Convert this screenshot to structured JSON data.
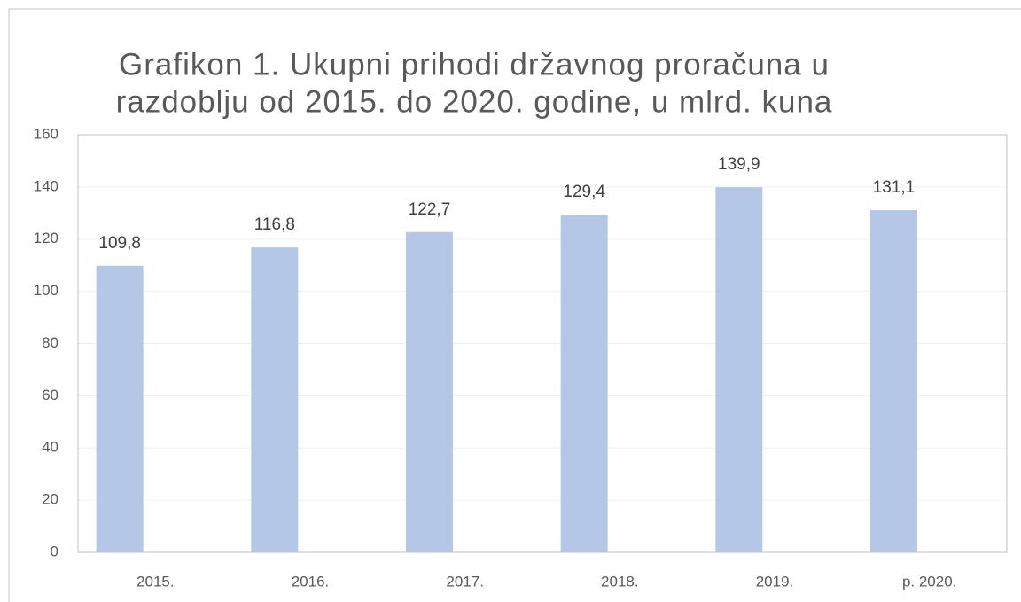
{
  "chart_data": {
    "type": "bar",
    "title": [
      "Grafikon 1. Ukupni prihodi državnog proračuna u",
      "razdoblju od 2015. do 2020. godine, u mlrd. kuna"
    ],
    "categories": [
      "2015.",
      "2016.",
      "2017.",
      "2018.",
      "2019.",
      "p. 2020."
    ],
    "values": [
      109.8,
      116.8,
      122.7,
      129.4,
      139.9,
      131.1
    ],
    "value_labels": [
      "109,8",
      "116,8",
      "122,7",
      "129,4",
      "139,9",
      "131,1"
    ],
    "color": "#b4c7e7",
    "ylim": [
      0,
      160
    ],
    "yticks": [
      0,
      20,
      40,
      60,
      80,
      100,
      120,
      140,
      160
    ],
    "grid": true
  }
}
